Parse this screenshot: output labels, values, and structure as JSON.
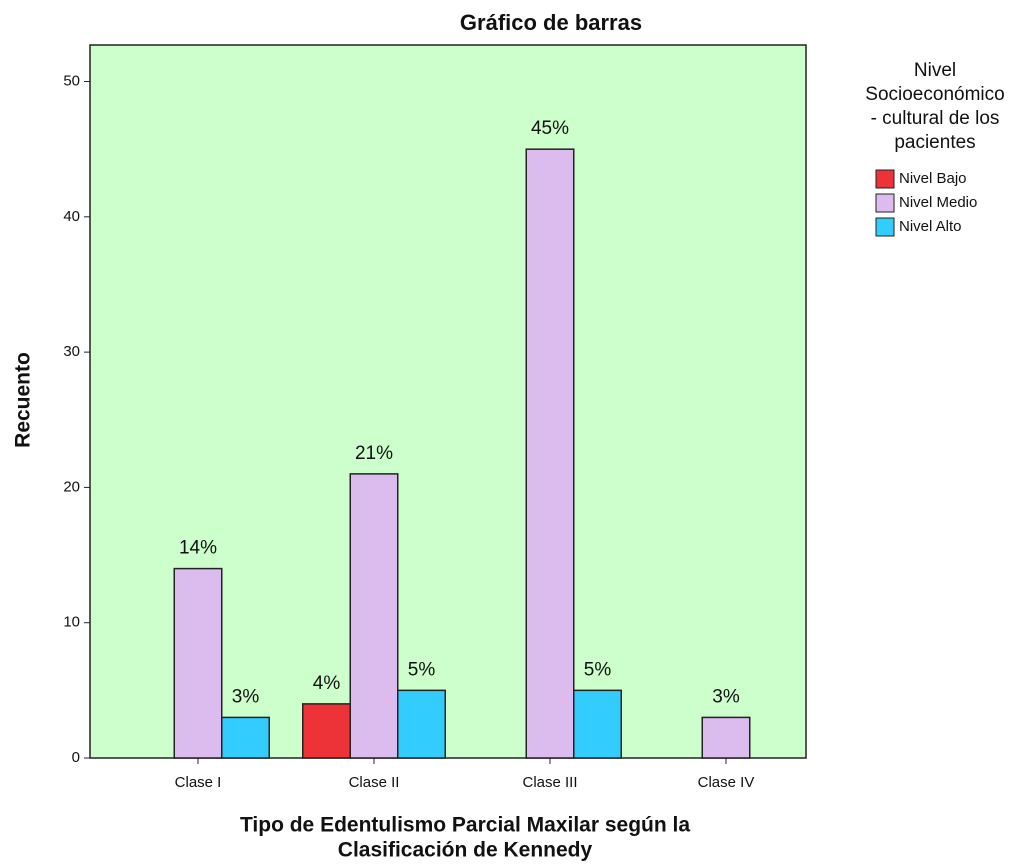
{
  "chart_data": {
    "type": "bar",
    "title": "Gráfico de barras",
    "categories": [
      "Clase I",
      "Clase II",
      "Clase III",
      "Clase IV"
    ],
    "series": [
      {
        "name": "Nivel Bajo",
        "color": "#ee3338",
        "values": [
          null,
          4,
          null,
          null
        ],
        "value_labels": [
          null,
          "4%",
          null,
          null
        ]
      },
      {
        "name": "Nivel Medio",
        "color": "#dcbcee",
        "values": [
          14,
          21,
          45,
          3
        ],
        "value_labels": [
          "14%",
          "21%",
          "45%",
          "3%"
        ]
      },
      {
        "name": "Nivel Alto",
        "color": "#33ccff",
        "values": [
          3,
          5,
          5,
          null
        ],
        "value_labels": [
          "3%",
          "5%",
          "5%",
          null
        ]
      }
    ],
    "y_label": "Recuento",
    "x_label": [
      "Tipo de Edentulismo Parcial Maxilar según la",
      "Clasificación de Kennedy"
    ],
    "legend_title": [
      "Nivel",
      "Socioeconómico",
      "- cultural de los",
      "pacientes"
    ],
    "legend_position": "right",
    "background": "#ccffcc",
    "ylim": [
      0,
      52.7
    ],
    "yticks": [
      0,
      10,
      20,
      30,
      40,
      50
    ]
  }
}
